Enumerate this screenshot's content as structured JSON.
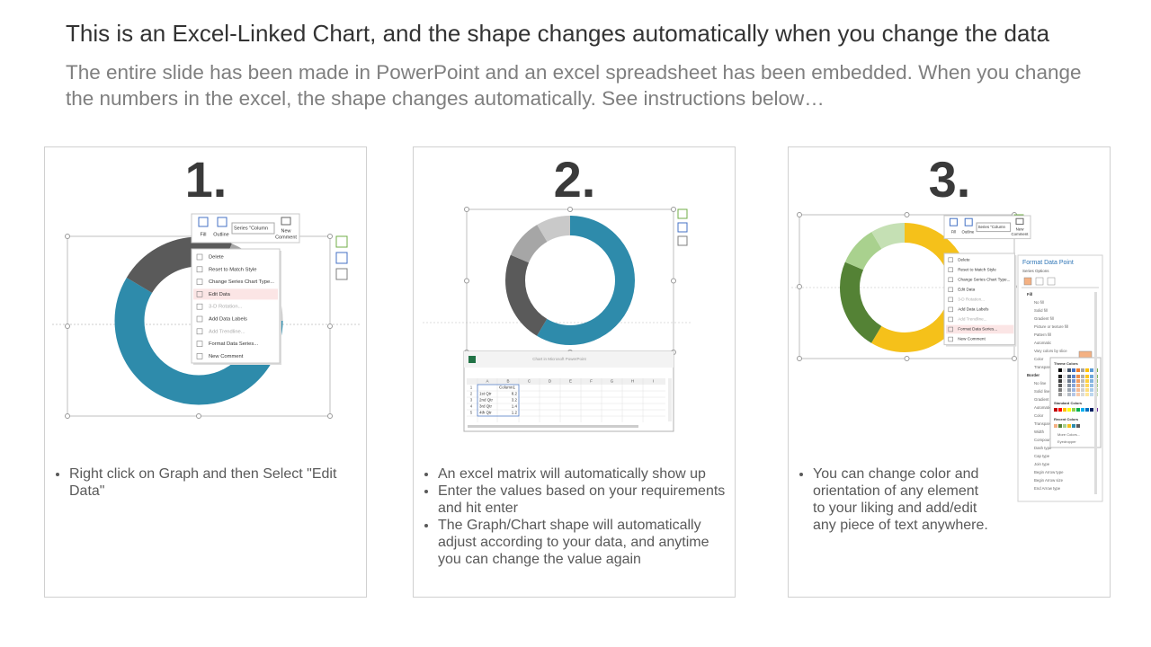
{
  "header": {
    "title": "This is an Excel-Linked Chart, and the shape changes automatically when you change the data",
    "subtitle": "The entire slide has been made in PowerPoint and an excel spreadsheet has been embedded. When you change the numbers in the excel, the shape changes automatically. See instructions below…"
  },
  "panels": [
    {
      "number": "1.",
      "bullets": [
        "Right click on Graph and then Select \"Edit Data\""
      ],
      "screenshot": {
        "toolbar": [
          "Fill",
          "Outline",
          "Series \"Column",
          "New",
          "Comment"
        ],
        "menu": [
          "Delete",
          "Reset to Match Style",
          "Change Series Chart Type...",
          "Edit Data",
          "3-D Rotation...",
          "Add Data Labels",
          "Add Trendline...",
          "Format Data Series...",
          "New Comment"
        ]
      }
    },
    {
      "number": "2.",
      "bullets": [
        "An excel matrix will automatically show up",
        "Enter the values based on your requirements and hit enter",
        "The Graph/Chart shape will automatically adjust according to your data, and anytime you can change the value again"
      ],
      "screenshot": {
        "window_title": "Chart in Microsoft PowerPoint",
        "columns": [
          "A",
          "B",
          "C",
          "D",
          "E",
          "F",
          "G",
          "H",
          "I"
        ],
        "row_numbers": [
          1,
          2,
          3,
          4,
          5
        ],
        "header": "Column1",
        "rows": [
          [
            "1st Qtr",
            8.2
          ],
          [
            "2nd Qtr",
            3.2
          ],
          [
            "3rd Qtr",
            1.4
          ],
          [
            "4th Qtr",
            1.2
          ]
        ]
      }
    },
    {
      "number": "3.",
      "bullets": [
        "You can change color and orientation of any element to your liking and add/edit any piece of text anywhere."
      ],
      "screenshot": {
        "toolbar": [
          "Fill",
          "Outline",
          "Series \"Column",
          "New",
          "Comment"
        ],
        "menu": [
          "Delete",
          "Reset to Match Style",
          "Change Series Chart Type...",
          "Edit Data",
          "3-D Rotation...",
          "Add Data Labels",
          "Add Trendline...",
          "Format Data Series...",
          "New Comment"
        ],
        "pane": {
          "title": "Format Data Point",
          "section": "Series Options",
          "options": [
            "Fill",
            "No fill",
            "Solid fill",
            "Gradient fill",
            "Picture or texture fill",
            "Pattern fill",
            "Automatic",
            "Vary colors by slice",
            "Color",
            "Transparency",
            "Border",
            "No line",
            "Solid line",
            "Gradient line",
            "Automatic",
            "Color",
            "Transparency",
            "Width",
            "Compound type",
            "Dash type",
            "Cap type",
            "Join type",
            "Begin Arrow type",
            "Begin Arrow size",
            "End Arrow type"
          ],
          "palette": [
            "Theme Colors",
            "Standard Colors",
            "Recent Colors",
            "More Colors...",
            "Eyedropper"
          ]
        }
      }
    }
  ]
}
